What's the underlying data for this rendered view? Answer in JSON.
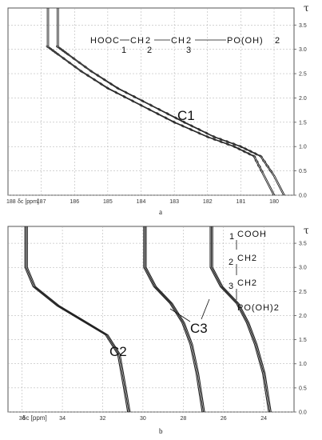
{
  "chart_data": [
    {
      "type": "line",
      "panel_caption": "a",
      "xlabel": "δc [ppm]",
      "ylabel": "τ",
      "x_axis_corner_label": "188",
      "x_ticks": [
        187,
        186,
        185,
        184,
        183,
        182,
        181,
        180
      ],
      "y_ticks": [
        0.0,
        0.5,
        1.0,
        1.5,
        2.0,
        2.5,
        3.0,
        3.5
      ],
      "xlim": [
        188,
        179.4
      ],
      "ylim": [
        0,
        3.85
      ],
      "formula": "HOOC—CH2—CH2—PO(OH)2",
      "formula_parts": [
        "HOOC",
        "CH",
        "2",
        "CH",
        "2",
        "PO(OH)",
        "2"
      ],
      "carbon_numbers": [
        "1",
        "2",
        "3"
      ],
      "annotations": [
        "C1"
      ],
      "series": [
        {
          "values": [
            [
              186.8,
              3.85
            ],
            [
              186.8,
              3.05
            ],
            [
              186.5,
              2.9
            ],
            [
              185.8,
              2.55
            ],
            [
              185.0,
              2.2
            ],
            [
              184.0,
              1.85
            ],
            [
              183.0,
              1.5
            ],
            [
              182.0,
              1.2
            ],
            [
              181.2,
              1.0
            ],
            [
              180.6,
              0.8
            ],
            [
              180.3,
              0.4
            ],
            [
              180.0,
              0.0
            ]
          ]
        },
        {
          "values": [
            [
              186.5,
              3.85
            ],
            [
              186.5,
              3.05
            ],
            [
              186.2,
              2.9
            ],
            [
              185.5,
              2.55
            ],
            [
              184.7,
              2.2
            ],
            [
              183.7,
              1.85
            ],
            [
              182.7,
              1.5
            ],
            [
              181.8,
              1.2
            ],
            [
              181.0,
              1.0
            ],
            [
              180.4,
              0.8
            ],
            [
              180.0,
              0.4
            ],
            [
              179.7,
              0.0
            ]
          ]
        }
      ]
    },
    {
      "type": "line",
      "panel_caption": "b",
      "xlabel": "δc [ppm]",
      "ylabel": "τ",
      "x_ticks": [
        36,
        34,
        32,
        30,
        28,
        26,
        24
      ],
      "x_tick_labels": [
        "36",
        "34",
        "32",
        "30",
        "28",
        "26",
        "24"
      ],
      "y_ticks": [
        0.0,
        0.5,
        1.0,
        1.5,
        2.0,
        2.5,
        3.0,
        3.5
      ],
      "xlim": [
        36.7,
        22.5
      ],
      "ylim": [
        0,
        3.85
      ],
      "formula_lines": [
        "COOH",
        "CH2",
        "CH2",
        "PO(OH)2"
      ],
      "carbon_numbers": [
        "1",
        "2",
        "3"
      ],
      "annotations": [
        "C2",
        "C3"
      ],
      "series": [
        {
          "values": [
            [
              35.8,
              3.85
            ],
            [
              35.8,
              3.0
            ],
            [
              35.4,
              2.6
            ],
            [
              34.2,
              2.2
            ],
            [
              32.8,
              1.85
            ],
            [
              31.8,
              1.6
            ],
            [
              31.2,
              1.2
            ],
            [
              30.9,
              0.5
            ],
            [
              30.7,
              0.0
            ]
          ]
        },
        {
          "values": [
            [
              29.9,
              3.85
            ],
            [
              29.9,
              3.0
            ],
            [
              29.4,
              2.6
            ],
            [
              28.6,
              2.25
            ],
            [
              28.0,
              1.85
            ],
            [
              27.6,
              1.4
            ],
            [
              27.3,
              0.8
            ],
            [
              27.0,
              0.0
            ]
          ]
        },
        {
          "values": [
            [
              26.6,
              3.85
            ],
            [
              26.6,
              3.0
            ],
            [
              26.1,
              2.6
            ],
            [
              25.3,
              2.25
            ],
            [
              24.8,
              1.85
            ],
            [
              24.4,
              1.4
            ],
            [
              24.0,
              0.8
            ],
            [
              23.7,
              0.0
            ]
          ]
        }
      ]
    }
  ]
}
